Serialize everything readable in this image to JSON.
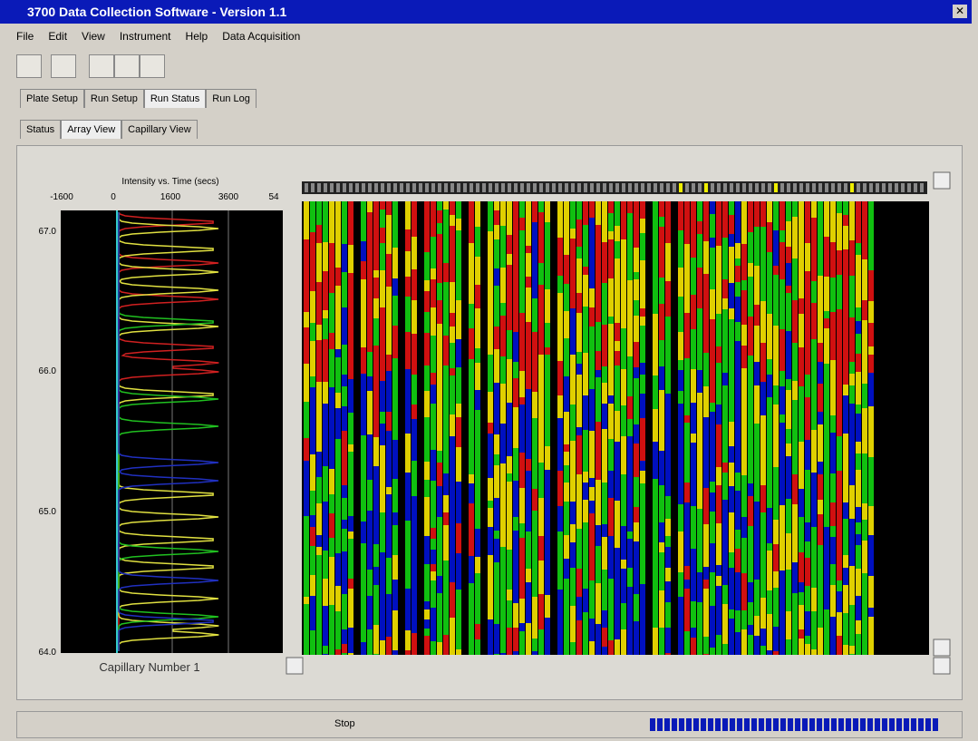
{
  "window": {
    "title": "3700 Data Collection Software - Version 1.1"
  },
  "menu": [
    "File",
    "Edit",
    "View",
    "Instrument",
    "Help",
    "Data Acquisition"
  ],
  "tabs": [
    "Plate Setup",
    "Run Setup",
    "Run Status",
    "Run Log"
  ],
  "subtabs": [
    "Status",
    "Array View",
    "Capillary View"
  ],
  "plot": {
    "title": "Intensity vs. Time (secs)",
    "x_ticks": [
      "-1600",
      "0",
      "1600",
      "3600",
      "54"
    ],
    "y_ticks": [
      "67.0",
      "66.0",
      "65.0",
      "64.0"
    ],
    "caption": "Capillary Number 1"
  },
  "status": {
    "text": "Stop"
  }
}
